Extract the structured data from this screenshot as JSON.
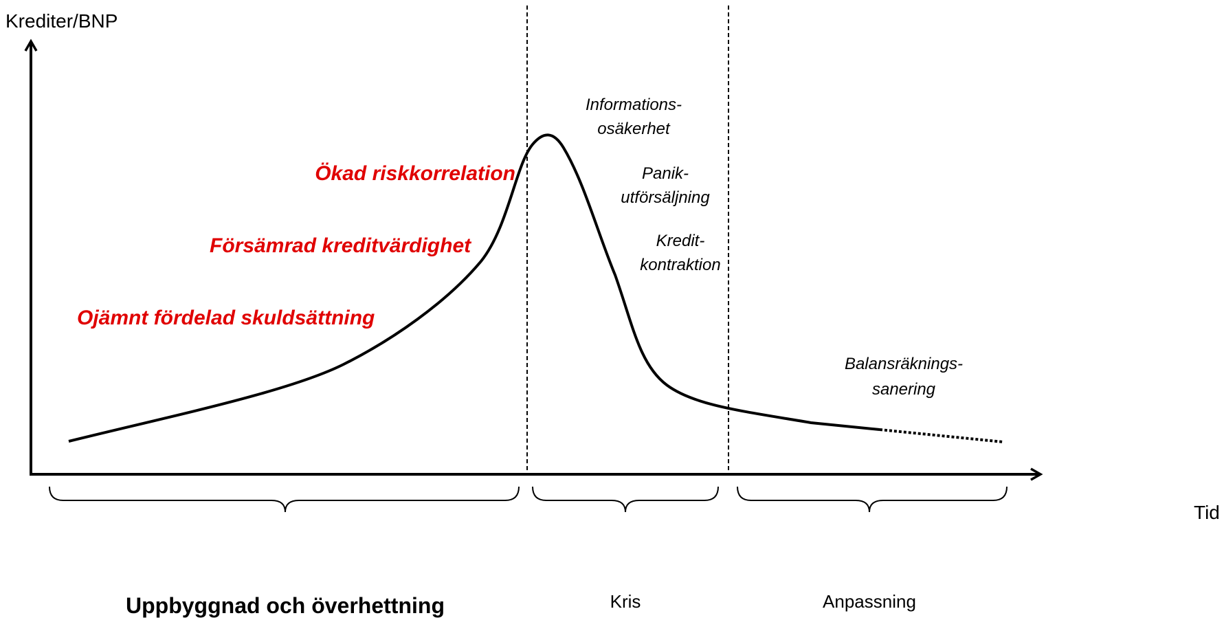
{
  "axes": {
    "y_label": "Krediter/BNP",
    "x_label": "Tid"
  },
  "risk_factors": [
    "Ökad riskkorrelation",
    "Försämrad kreditvärdighet",
    "Ojämnt fördelad skuldsättning"
  ],
  "annotations": [
    [
      "Informations-",
      "osäkerhet"
    ],
    [
      "Panik-",
      "utförsäljning"
    ],
    [
      "Kredit-",
      "kontraktion"
    ],
    [
      "Balansräknings-",
      "sanering"
    ]
  ],
  "phases": [
    "Uppbyggnad och överhettning",
    "Kris",
    "Anpassning"
  ]
}
